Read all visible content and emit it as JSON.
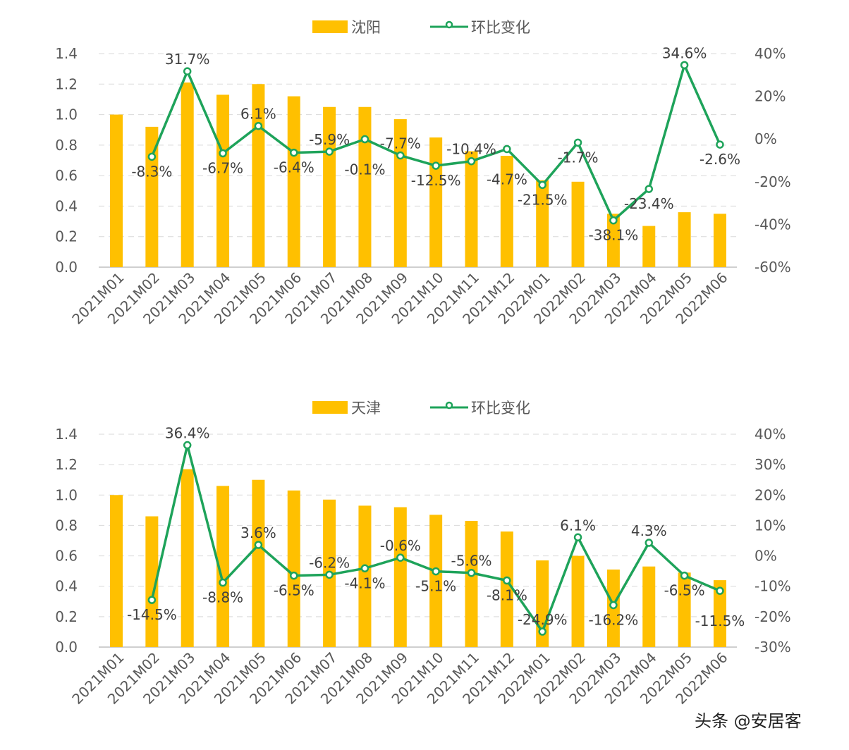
{
  "colors": {
    "bar": "#FFC000",
    "line": "#1EA35A",
    "marker_fill": "#FFFFFF",
    "grid": "#D9D9D9"
  },
  "watermark": "头条 @安居客",
  "chart_data": [
    {
      "type": "bar+line",
      "legend": {
        "bar": "沈阳",
        "line": "环比变化",
        "placement": "top"
      },
      "categories": [
        "2021M01",
        "2021M02",
        "2021M03",
        "2021M04",
        "2021M05",
        "2021M06",
        "2021M07",
        "2021M08",
        "2021M09",
        "2021M10",
        "2021M11",
        "2021M12",
        "2022M01",
        "2022M02",
        "2022M03",
        "2022M04",
        "2022M05",
        "2022M06"
      ],
      "bar_values": [
        1.0,
        0.92,
        1.21,
        1.13,
        1.2,
        1.12,
        1.05,
        1.05,
        0.97,
        0.85,
        0.76,
        0.73,
        0.57,
        0.56,
        0.35,
        0.27,
        0.36,
        0.35
      ],
      "line_values": [
        null,
        -8.3,
        31.7,
        -6.7,
        6.1,
        -6.4,
        -5.9,
        -0.1,
        -7.7,
        -12.5,
        -10.4,
        -4.7,
        -21.5,
        -1.7,
        -38.1,
        -23.4,
        34.6,
        -2.6
      ],
      "line_labels": [
        "",
        "-8.3%",
        "31.7%",
        "-6.7%",
        "6.1%",
        "-6.4%",
        "-5.9%",
        "-0.1%",
        "-7.7%",
        "-12.5%",
        "-10.4%",
        "-4.7%",
        "-21.5%",
        "-1.7%",
        "-38.1%",
        "-23.4%",
        "34.6%",
        "-2.6%"
      ],
      "y_left": {
        "range": [
          0,
          1.4
        ],
        "ticks": [
          "0.0",
          "0.2",
          "0.4",
          "0.6",
          "0.8",
          "1.0",
          "1.2",
          "1.4"
        ]
      },
      "y_right": {
        "range": [
          -60,
          40
        ],
        "ticks": [
          "-60%",
          "-40%",
          "-20%",
          "0%",
          "20%",
          "40%"
        ]
      },
      "grid": true
    },
    {
      "type": "bar+line",
      "legend": {
        "bar": "天津",
        "line": "环比变化",
        "placement": "top"
      },
      "categories": [
        "2021M01",
        "2021M02",
        "2021M03",
        "2021M04",
        "2021M05",
        "2021M06",
        "2021M07",
        "2021M08",
        "2021M09",
        "2021M10",
        "2021M11",
        "2021M12",
        "2022M01",
        "2022M02",
        "2022M03",
        "2022M04",
        "2022M05",
        "2022M06"
      ],
      "bar_values": [
        1.0,
        0.86,
        1.17,
        1.06,
        1.1,
        1.03,
        0.97,
        0.93,
        0.92,
        0.87,
        0.83,
        0.76,
        0.57,
        0.6,
        0.51,
        0.53,
        0.49,
        0.44
      ],
      "line_values": [
        null,
        -14.5,
        36.4,
        -8.8,
        3.6,
        -6.5,
        -6.2,
        -4.1,
        -0.6,
        -5.1,
        -5.6,
        -8.1,
        -24.9,
        6.1,
        -16.2,
        4.3,
        -6.5,
        -11.5
      ],
      "line_labels": [
        "",
        "-14.5%",
        "36.4%",
        "-8.8%",
        "3.6%",
        "-6.5%",
        "-6.2%",
        "-4.1%",
        "-0.6%",
        "-5.1%",
        "-5.6%",
        "-8.1%",
        "-24.9%",
        "6.1%",
        "-16.2%",
        "4.3%",
        "-6.5%",
        "-11.5%"
      ],
      "y_left": {
        "range": [
          0,
          1.4
        ],
        "ticks": [
          "0.0",
          "0.2",
          "0.4",
          "0.6",
          "0.8",
          "1.0",
          "1.2",
          "1.4"
        ]
      },
      "y_right": {
        "range": [
          -30,
          40
        ],
        "ticks": [
          "-30%",
          "-20%",
          "-10%",
          "0%",
          "10%",
          "20%",
          "30%",
          "40%"
        ]
      },
      "grid": true
    }
  ]
}
